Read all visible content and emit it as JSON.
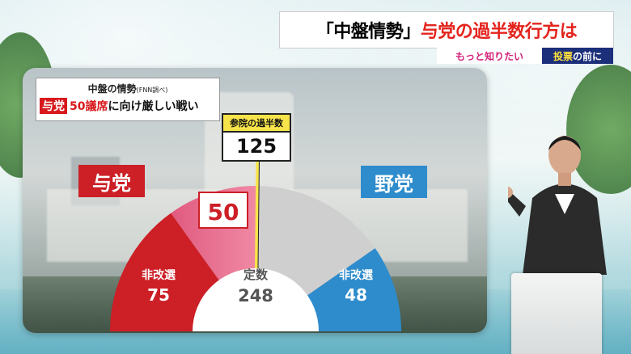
{
  "headline": {
    "part1": "「中盤情勢」",
    "part2": "与党の過半数行方は"
  },
  "subbar": {
    "left": "もっと知りたい",
    "right_a": "投票",
    "right_b": "の前に"
  },
  "infobox": {
    "title": "中盤の情勢",
    "source": "(FNN調べ)",
    "tag": "与党",
    "number": "50議席",
    "rest": "に向け厳しい戦い"
  },
  "majority": {
    "label": "参院の過半数",
    "value": "125"
  },
  "ruling": {
    "label": "与党",
    "current_label": "非改選",
    "current": "75",
    "target": "50"
  },
  "opposition": {
    "label": "野党",
    "current_label": "非改選",
    "current": "48"
  },
  "total": {
    "label": "定数",
    "value": "248"
  },
  "colors": {
    "ruling": "#cc1f26",
    "target": "#e05a7f",
    "opposition": "#2e8ccc",
    "remaining": "#cfcfcf",
    "majority_line": "#f7e44a"
  }
}
